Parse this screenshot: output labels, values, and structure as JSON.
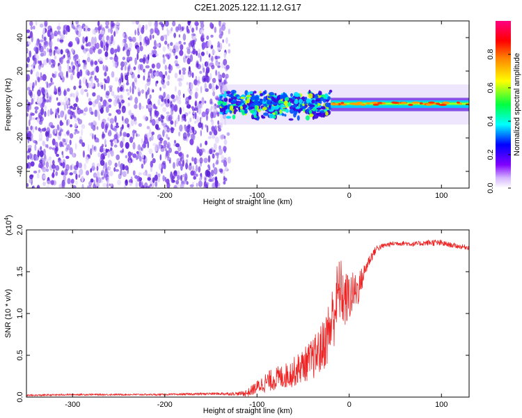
{
  "title": "C2E1.2025.122.11.12.G17",
  "chart_data": [
    {
      "type": "heatmap",
      "name": "spectrogram",
      "xlabel": "Height of straight line (km)",
      "ylabel": "Frequency (Hz)",
      "xlim": [
        -350,
        130
      ],
      "ylim": [
        -50,
        50
      ],
      "xticks": [
        "-300",
        "-200",
        "-100",
        "0",
        "100"
      ],
      "xtick_values": [
        -300,
        -200,
        -100,
        0,
        100
      ],
      "yticks": [
        "-40",
        "-20",
        "0",
        "20",
        "40"
      ],
      "ytick_values": [
        -40,
        -20,
        0,
        20,
        40
      ],
      "grid": false,
      "colorbar": {
        "label": "Normalized spectral amplitude",
        "range": [
          0,
          1
        ],
        "ticks": [
          "0.0",
          "0.2",
          "0.4",
          "0.6",
          "0.8"
        ],
        "tick_values": [
          0.0,
          0.2,
          0.4,
          0.6,
          0.8
        ],
        "colormap": [
          "#ffffff",
          "#8000ff",
          "#0000ff",
          "#00ffff",
          "#00ff00",
          "#ffff00",
          "#ff8000",
          "#ff0000",
          "#ff0080"
        ]
      },
      "regions": [
        {
          "x_range": [
            -350,
            -130
          ],
          "freq_range": [
            -50,
            50
          ],
          "amplitude": "low-noise",
          "color": "#6a2ce0"
        },
        {
          "x_range": [
            -140,
            -20
          ],
          "freq_range": [
            -8,
            10
          ],
          "amplitude": "medium",
          "center_freq": 2
        },
        {
          "x_range": [
            -20,
            130
          ],
          "freq_range": [
            -2,
            3
          ],
          "amplitude": "high",
          "center_freq": 0
        }
      ]
    },
    {
      "type": "line",
      "name": "snr",
      "xlabel": "Height of straight line (km)",
      "ylabel": "SNR (10 * v/v)",
      "multiplier_label": "(x10",
      "multiplier_exp": "4",
      "xlim": [
        -350,
        130
      ],
      "ylim": [
        0,
        2.0
      ],
      "xticks": [
        "-300",
        "-200",
        "-100",
        "0",
        "100"
      ],
      "xtick_values": [
        -300,
        -200,
        -100,
        0,
        100
      ],
      "yticks": [
        "0.0",
        "0.5",
        "1.0",
        "1.5",
        "2.0"
      ],
      "ytick_values": [
        0.0,
        0.5,
        1.0,
        1.5,
        2.0
      ],
      "grid": false,
      "series_color": "#ee2222",
      "x": [
        -350,
        -300,
        -250,
        -200,
        -150,
        -120,
        -110,
        -100,
        -90,
        -80,
        -70,
        -60,
        -50,
        -40,
        -30,
        -25,
        -20,
        -15,
        -10,
        -5,
        0,
        5,
        10,
        15,
        20,
        25,
        30,
        40,
        50,
        60,
        70,
        80,
        90,
        100,
        110,
        120,
        130
      ],
      "y": [
        0.02,
        0.03,
        0.03,
        0.03,
        0.04,
        0.04,
        0.05,
        0.12,
        0.18,
        0.22,
        0.25,
        0.3,
        0.38,
        0.45,
        0.58,
        0.7,
        0.85,
        1.1,
        1.3,
        1.15,
        1.2,
        1.25,
        1.3,
        1.45,
        1.6,
        1.7,
        1.78,
        1.82,
        1.84,
        1.84,
        1.83,
        1.84,
        1.85,
        1.84,
        1.82,
        1.8,
        1.79
      ],
      "noise_amplitude": [
        0.01,
        0.01,
        0.01,
        0.01,
        0.015,
        0.02,
        0.05,
        0.08,
        0.12,
        0.14,
        0.15,
        0.18,
        0.2,
        0.25,
        0.3,
        0.35,
        0.4,
        0.45,
        0.4,
        0.35,
        0.3,
        0.25,
        0.2,
        0.12,
        0.08,
        0.06,
        0.04,
        0.03,
        0.03,
        0.03,
        0.03,
        0.03,
        0.04,
        0.04,
        0.03,
        0.03,
        0.03
      ]
    }
  ]
}
